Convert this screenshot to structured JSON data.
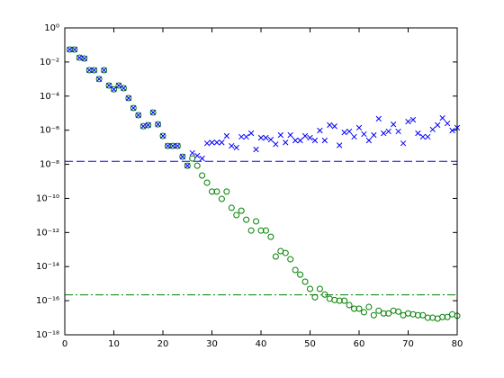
{
  "chart_data": {
    "type": "scatter",
    "log_y": true,
    "xlim": [
      0,
      80
    ],
    "xticks": [
      0,
      10,
      20,
      30,
      40,
      50,
      60,
      70,
      80
    ],
    "ylim": [
      1e-18,
      1
    ],
    "yticks": [
      {
        "value": 1e-18,
        "label": "10⁻¹⁸"
      },
      {
        "value": 1e-16,
        "label": "10⁻¹⁶"
      },
      {
        "value": 1e-14,
        "label": "10⁻¹⁴"
      },
      {
        "value": 1e-12,
        "label": "10⁻¹²"
      },
      {
        "value": 1e-10,
        "label": "10⁻¹⁰"
      },
      {
        "value": 1e-08,
        "label": "10⁻⁸"
      },
      {
        "value": 1e-06,
        "label": "10⁻⁶"
      },
      {
        "value": 0.0001,
        "label": "10⁻⁴"
      },
      {
        "value": 0.01,
        "label": "10⁻²"
      },
      {
        "value": 1,
        "label": "10⁰"
      }
    ],
    "x": [
      1,
      2,
      3,
      4,
      5,
      6,
      7,
      8,
      9,
      10,
      11,
      12,
      13,
      14,
      15,
      16,
      17,
      18,
      19,
      20,
      21,
      22,
      23,
      24,
      25,
      26,
      27,
      28,
      29,
      30,
      31,
      32,
      33,
      34,
      35,
      36,
      37,
      38,
      39,
      40,
      41,
      42,
      43,
      44,
      45,
      46,
      47,
      48,
      49,
      50,
      51,
      52,
      53,
      54,
      55,
      56,
      57,
      58,
      59,
      60,
      61,
      62,
      63,
      64,
      65,
      66,
      67,
      68,
      69,
      70,
      71,
      72,
      73,
      74,
      75,
      76,
      77,
      78,
      79,
      80
    ],
    "series": [
      {
        "marker": "circle",
        "color": "#008000",
        "values": [
          0.054,
          0.054,
          0.018,
          0.016,
          0.0033,
          0.0033,
          0.001,
          0.0033,
          0.00042,
          0.00025,
          0.00042,
          0.00029,
          7.6e-05,
          2e-05,
          7.6e-06,
          1.7e-06,
          2e-06,
          1.1e-05,
          2.2e-06,
          4.6e-07,
          1.2e-07,
          1.2e-07,
          1.2e-07,
          2.8e-08,
          8.3e-09,
          2.2e-08,
          8.3e-09,
          2.2e-09,
          8.3e-10,
          2.5e-10,
          2.5e-10,
          9.3e-11,
          2.5e-10,
          2.8e-11,
          1.05e-11,
          1.9e-11,
          5.6e-12,
          1.3e-12,
          4.5e-12,
          1.3e-12,
          1.3e-12,
          5.6e-13,
          3.9e-14,
          8.1e-14,
          6.3e-14,
          2.7e-14,
          6.3e-15,
          3.4e-15,
          1.3e-15,
          4.9e-16,
          1.6e-16,
          4.9e-16,
          2.3e-16,
          1.3e-16,
          1.1e-16,
          1e-16,
          1e-16,
          5.5e-17,
          3.4e-17,
          3.4e-17,
          2.1e-17,
          4.3e-17,
          1.4e-17,
          2.6e-17,
          1.8e-17,
          1.8e-17,
          2.6e-17,
          2.3e-17,
          1.4e-17,
          1.8e-17,
          1.6e-17,
          1.4e-17,
          1.4e-17,
          1e-17,
          1e-17,
          8.9e-18,
          1.1e-17,
          1.1e-17,
          1.6e-17,
          1.3e-17
        ]
      },
      {
        "marker": "x",
        "color": "#0000ff",
        "values": [
          0.054,
          0.054,
          0.018,
          0.016,
          0.0033,
          0.0033,
          0.001,
          0.0033,
          0.00042,
          0.00025,
          0.00042,
          0.00029,
          7.6e-05,
          2e-05,
          7.6e-06,
          1.7e-06,
          2e-06,
          1.1e-05,
          2.2e-06,
          4.6e-07,
          1.2e-07,
          1.2e-07,
          1.2e-07,
          2.8e-08,
          8.3e-09,
          4.6e-08,
          3.2e-08,
          2.2e-08,
          1.7e-07,
          1.9e-07,
          1.9e-07,
          1.9e-07,
          4.6e-07,
          1.2e-07,
          9.5e-08,
          4.1e-07,
          4.1e-07,
          6.6e-07,
          7.4e-08,
          3.6e-07,
          3.6e-07,
          2.8e-07,
          1.5e-07,
          5.2e-07,
          1.9e-07,
          5.2e-07,
          2.5e-07,
          2.5e-07,
          4.6e-07,
          3.6e-07,
          2.5e-07,
          9.5e-07,
          2.5e-07,
          2e-06,
          1.7e-06,
          1.3e-07,
          7.4e-07,
          8.5e-07,
          4.1e-07,
          1.4e-06,
          5.9e-07,
          2.5e-07,
          5.2e-07,
          4.7e-06,
          6.6e-07,
          8.5e-07,
          2.2e-06,
          8.5e-07,
          1.7e-07,
          3.2e-06,
          4.1e-06,
          6.6e-07,
          4.1e-07,
          4.1e-07,
          1.1e-06,
          2e-06,
          5.2e-06,
          2.5e-06,
          9.5e-07,
          1.4e-06
        ]
      }
    ],
    "hlines": [
      {
        "value": 1.49e-08,
        "color": "#0000ff",
        "style": "dashed"
      },
      {
        "value": 2.2e-16,
        "color": "#008000",
        "style": "dashdot"
      }
    ]
  }
}
